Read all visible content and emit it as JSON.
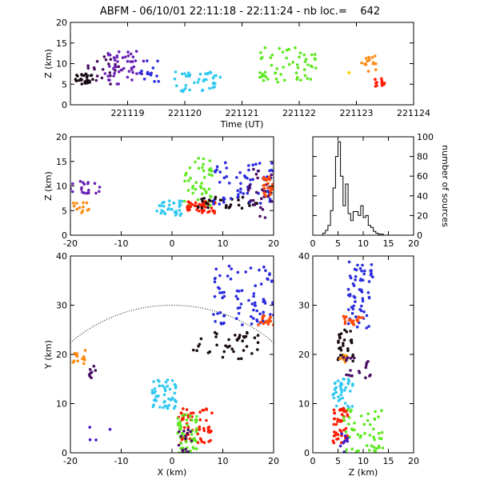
{
  "title": "ABFM - 06/10/01 22:11:18 - 22:11:24 - nb loc.=    642",
  "palette": {
    "black": "#1a0a14",
    "dark_purple": "#4a0f63",
    "purple": "#6a22b5",
    "indigo": "#4a18c8",
    "blue": "#2b2be0",
    "cyan": "#30c8f0",
    "green": "#5ce81e",
    "lime": "#48ff30",
    "yellow": "#ffd200",
    "orange": "#ff8a10",
    "red_orange": "#ff4a0a",
    "red": "#ff1a00"
  },
  "chart_data": [
    {
      "id": "time_altitude",
      "type": "scatter",
      "xlabel": "Time (UT)",
      "ylabel": "Z (km)",
      "xlim": [
        221118,
        221124
      ],
      "ylim": [
        0,
        20
      ],
      "xticks": [
        221119,
        221120,
        221121,
        221122,
        221123,
        221124
      ],
      "xtick_labels": [
        "221119",
        "221120",
        "221121",
        "221122",
        "221123",
        "221124"
      ],
      "yticks": [
        0,
        5,
        10,
        15,
        20
      ],
      "ytick_labels": [
        "0",
        "5",
        "10",
        "15",
        "20"
      ],
      "clusters": [
        {
          "color": "black",
          "x": [
            221118.05,
            221118.4
          ],
          "y": [
            5,
            7.5
          ],
          "n": 30
        },
        {
          "color": "dark_purple",
          "x": [
            221118.3,
            221118.9
          ],
          "y": [
            5,
            12
          ],
          "n": 20
        },
        {
          "color": "purple",
          "x": [
            221118.6,
            221119.3
          ],
          "y": [
            5,
            13
          ],
          "n": 45
        },
        {
          "color": "blue",
          "x": [
            221119.2,
            221119.55
          ],
          "y": [
            5.5,
            11
          ],
          "n": 15
        },
        {
          "color": "cyan",
          "x": [
            221119.8,
            221120.7
          ],
          "y": [
            3,
            8
          ],
          "n": 40
        },
        {
          "color": "green",
          "x": [
            221121.3,
            221122.3
          ],
          "y": [
            5.5,
            14
          ],
          "n": 55
        },
        {
          "color": "yellow",
          "x": [
            221122.85,
            221122.9
          ],
          "y": [
            7.5,
            8
          ],
          "n": 2
        },
        {
          "color": "orange",
          "x": [
            221123.05,
            221123.35
          ],
          "y": [
            8,
            12
          ],
          "n": 15
        },
        {
          "color": "red",
          "x": [
            221123.3,
            221123.5
          ],
          "y": [
            4.5,
            6.5
          ],
          "n": 15
        }
      ]
    },
    {
      "id": "x_altitude",
      "type": "scatter",
      "xlabel": "",
      "ylabel": "Z (km)",
      "xlim": [
        -20,
        20
      ],
      "ylim": [
        0,
        20
      ],
      "xticks": [
        -20,
        -10,
        0,
        10,
        20
      ],
      "xtick_labels": [
        "-20",
        "-10",
        "0",
        "10",
        "20"
      ],
      "yticks": [
        0,
        5,
        10,
        15,
        20
      ],
      "ytick_labels": [
        "0",
        "5",
        "10",
        "15",
        "20"
      ],
      "clusters": [
        {
          "color": "purple",
          "x": [
            -20,
            -14
          ],
          "y": [
            8.5,
            11
          ],
          "n": 20
        },
        {
          "color": "orange",
          "x": [
            -20,
            -16
          ],
          "y": [
            4.5,
            7
          ],
          "n": 12
        },
        {
          "color": "cyan",
          "x": [
            -3,
            2
          ],
          "y": [
            4,
            7
          ],
          "n": 30
        },
        {
          "color": "green",
          "x": [
            2,
            8
          ],
          "y": [
            5.5,
            16
          ],
          "n": 45
        },
        {
          "color": "red",
          "x": [
            3,
            9
          ],
          "y": [
            4.5,
            7
          ],
          "n": 40
        },
        {
          "color": "black",
          "x": [
            5,
            17
          ],
          "y": [
            5.5,
            8
          ],
          "n": 35
        },
        {
          "color": "blue",
          "x": [
            8,
            20
          ],
          "y": [
            6,
            15
          ],
          "n": 60
        },
        {
          "color": "dark_purple",
          "x": [
            15,
            20
          ],
          "y": [
            3,
            14
          ],
          "n": 30
        },
        {
          "color": "red_orange",
          "x": [
            18,
            20
          ],
          "y": [
            8,
            12
          ],
          "n": 25
        }
      ]
    },
    {
      "id": "altitude_histogram",
      "type": "histogram",
      "xlabel": "",
      "ylabel": "number of sources",
      "xlim": [
        0,
        20
      ],
      "ylim": [
        0,
        100
      ],
      "xticks": [
        0,
        5,
        10,
        15,
        20
      ],
      "xtick_labels": [
        "0",
        "5",
        "10",
        "15",
        "20"
      ],
      "yticks": [
        0,
        20,
        40,
        60,
        80,
        100
      ],
      "ytick_labels": [
        "0",
        "20",
        "40",
        "60",
        "80",
        "100"
      ],
      "bin_width": 0.5,
      "bin_start": 2,
      "counts": [
        2,
        5,
        10,
        25,
        48,
        80,
        95,
        60,
        30,
        52,
        22,
        15,
        24,
        24,
        20,
        30,
        18,
        20,
        10,
        8,
        4,
        2,
        1,
        1
      ]
    },
    {
      "id": "plan_view",
      "type": "scatter",
      "xlabel": "X (km)",
      "ylabel": "Y (km)",
      "xlim": [
        -20,
        20
      ],
      "ylim": [
        0,
        40
      ],
      "xticks": [
        -20,
        -10,
        0,
        10,
        20
      ],
      "xtick_labels": [
        "-20",
        "-10",
        "0",
        "10",
        "20"
      ],
      "yticks": [
        0,
        10,
        20,
        30,
        40
      ],
      "ytick_labels": [
        "0",
        "10",
        "20",
        "30",
        "40"
      ],
      "range_circle_radius": 30,
      "clusters": [
        {
          "color": "orange",
          "x": [
            -20,
            -17
          ],
          "y": [
            18,
            21
          ],
          "n": 14
        },
        {
          "color": "dark_purple",
          "x": [
            -17,
            -15
          ],
          "y": [
            15,
            18
          ],
          "n": 8
        },
        {
          "color": "indigo",
          "x": [
            -17,
            -12
          ],
          "y": [
            0,
            6
          ],
          "n": 4
        },
        {
          "color": "cyan",
          "x": [
            -4,
            1
          ],
          "y": [
            9,
            15
          ],
          "n": 50
        },
        {
          "color": "blue",
          "x": [
            8,
            20
          ],
          "y": [
            26,
            38
          ],
          "n": 80
        },
        {
          "color": "black",
          "x": [
            4,
            17
          ],
          "y": [
            19,
            25
          ],
          "n": 40
        },
        {
          "color": "red_orange",
          "x": [
            17,
            20
          ],
          "y": [
            26,
            28
          ],
          "n": 18
        },
        {
          "color": "red",
          "x": [
            1,
            8
          ],
          "y": [
            2,
            9
          ],
          "n": 60
        },
        {
          "color": "green",
          "x": [
            1,
            5
          ],
          "y": [
            0,
            8
          ],
          "n": 50
        },
        {
          "color": "dark_purple",
          "x": [
            1,
            4
          ],
          "y": [
            0,
            5
          ],
          "n": 15
        }
      ]
    },
    {
      "id": "altitude_y",
      "type": "scatter",
      "xlabel": "Z (km)",
      "ylabel": "",
      "xlim": [
        0,
        20
      ],
      "ylim": [
        0,
        40
      ],
      "xticks": [
        0,
        5,
        10,
        15,
        20
      ],
      "xtick_labels": [
        "0",
        "5",
        "10",
        "15",
        "20"
      ],
      "yticks": [
        0,
        10,
        20,
        30,
        40
      ],
      "ytick_labels": [
        "0",
        "10",
        "20",
        "30",
        "40"
      ],
      "clusters": [
        {
          "color": "blue",
          "x": [
            7,
            12
          ],
          "y": [
            25,
            39
          ],
          "n": 60
        },
        {
          "color": "red_orange",
          "x": [
            6,
            10
          ],
          "y": [
            26,
            28
          ],
          "n": 20
        },
        {
          "color": "black",
          "x": [
            5,
            8
          ],
          "y": [
            18,
            25
          ],
          "n": 30
        },
        {
          "color": "orange",
          "x": [
            5,
            7
          ],
          "y": [
            18,
            20
          ],
          "n": 10
        },
        {
          "color": "dark_purple",
          "x": [
            6,
            12
          ],
          "y": [
            15,
            22
          ],
          "n": 20
        },
        {
          "color": "cyan",
          "x": [
            4,
            8
          ],
          "y": [
            9,
            15
          ],
          "n": 40
        },
        {
          "color": "red",
          "x": [
            4,
            7
          ],
          "y": [
            2,
            9
          ],
          "n": 45
        },
        {
          "color": "green",
          "x": [
            6,
            14
          ],
          "y": [
            0,
            9
          ],
          "n": 50
        },
        {
          "color": "indigo",
          "x": [
            5,
            7
          ],
          "y": [
            0,
            4
          ],
          "n": 10
        }
      ]
    }
  ]
}
